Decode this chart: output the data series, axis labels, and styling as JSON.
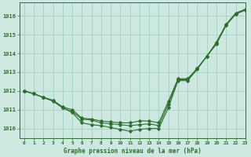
{
  "title": "Graphe pression niveau de la mer (hPa)",
  "background_color": "#cce8e0",
  "line_color": "#2d6e2d",
  "grid_color": "#99ccbb",
  "xlim": [
    -0.5,
    23
  ],
  "ylim": [
    1009.5,
    1016.7
  ],
  "yticks": [
    1010,
    1011,
    1012,
    1013,
    1014,
    1015,
    1016
  ],
  "xticks": [
    0,
    1,
    2,
    3,
    4,
    5,
    6,
    7,
    8,
    9,
    10,
    11,
    12,
    13,
    14,
    15,
    16,
    17,
    18,
    19,
    20,
    21,
    22,
    23
  ],
  "series": [
    {
      "y": [
        1012.0,
        1011.9,
        1011.7,
        1011.5,
        1011.1,
        1010.9,
        1010.3,
        1010.2,
        1010.2,
        1010.1,
        1010.05,
        1009.85,
        1010.0,
        1010.05,
        1010.0,
        1011.05,
        1012.55,
        1012.55,
        1013.15,
        1013.85,
        1014.55,
        1015.5,
        1016.1,
        1016.35
      ]
    },
    {
      "y": [
        1012.0,
        1011.85,
        1011.65,
        1011.45,
        1011.05,
        1010.85,
        1010.45,
        1010.45,
        1010.3,
        1010.25,
        1010.2,
        1010.15,
        1010.2,
        1010.2,
        1010.1,
        1011.25,
        1012.6,
        1012.6,
        1013.2,
        1013.85,
        1014.5,
        1015.45,
        1016.1,
        1016.3
      ]
    },
    {
      "y": [
        1012.0,
        1011.85,
        1011.65,
        1011.5,
        1011.15,
        1011.05,
        1010.55,
        1010.55,
        1010.4,
        1010.35,
        1010.3,
        1010.3,
        1010.35,
        1010.35,
        1010.25,
        1011.45,
        1012.65,
        1012.65,
        1013.2,
        1013.85,
        1014.5,
        1015.45,
        1016.05,
        1016.25
      ]
    }
  ]
}
